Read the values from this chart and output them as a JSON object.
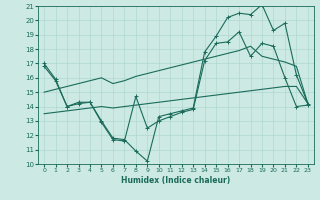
{
  "xlabel": "Humidex (Indice chaleur)",
  "background_color": "#cce9e4",
  "grid_color": "#b0d8d0",
  "line_color": "#1a6b5a",
  "xlim": [
    -0.5,
    23.5
  ],
  "ylim": [
    10,
    21
  ],
  "yticks": [
    10,
    11,
    12,
    13,
    14,
    15,
    16,
    17,
    18,
    19,
    20,
    21
  ],
  "xticks": [
    0,
    1,
    2,
    3,
    4,
    5,
    6,
    7,
    8,
    9,
    10,
    11,
    12,
    13,
    14,
    15,
    16,
    17,
    18,
    19,
    20,
    21,
    22,
    23
  ],
  "line1_x": [
    0,
    1,
    2,
    3,
    4,
    5,
    6,
    7,
    8,
    9,
    10,
    11,
    12,
    13,
    14,
    15,
    16,
    17,
    18,
    19,
    20,
    21,
    22,
    23
  ],
  "line1_y": [
    17.0,
    15.9,
    14.0,
    14.3,
    14.3,
    13.0,
    11.8,
    11.7,
    10.9,
    10.2,
    13.3,
    13.5,
    13.7,
    13.9,
    17.8,
    18.9,
    20.2,
    20.5,
    20.4,
    21.1,
    19.3,
    19.8,
    16.2,
    14.2
  ],
  "line2_x": [
    0,
    1,
    2,
    3,
    4,
    5,
    6,
    7,
    8,
    9,
    10,
    11,
    12,
    13,
    14,
    15,
    16,
    17,
    18,
    19,
    20,
    21,
    22,
    23
  ],
  "line2_y": [
    16.8,
    15.8,
    14.0,
    14.2,
    14.3,
    12.9,
    11.7,
    11.6,
    14.7,
    12.5,
    13.0,
    13.3,
    13.6,
    13.8,
    17.2,
    18.4,
    18.5,
    19.2,
    17.5,
    18.4,
    18.2,
    16.0,
    14.0,
    14.1
  ],
  "line3_x": [
    0,
    1,
    2,
    3,
    4,
    5,
    6,
    7,
    8,
    9,
    10,
    11,
    12,
    13,
    14,
    15,
    16,
    17,
    18,
    19,
    20,
    21,
    22,
    23
  ],
  "line3_y": [
    13.5,
    13.6,
    13.7,
    13.8,
    13.9,
    14.0,
    13.9,
    14.0,
    14.1,
    14.2,
    14.3,
    14.4,
    14.5,
    14.6,
    14.7,
    14.8,
    14.9,
    15.0,
    15.1,
    15.2,
    15.3,
    15.4,
    15.4,
    14.2
  ],
  "line4_x": [
    0,
    1,
    2,
    3,
    4,
    5,
    6,
    7,
    8,
    9,
    10,
    11,
    12,
    13,
    14,
    15,
    16,
    17,
    18,
    19,
    20,
    21,
    22,
    23
  ],
  "line4_y": [
    15.0,
    15.2,
    15.4,
    15.6,
    15.8,
    16.0,
    15.6,
    15.8,
    16.1,
    16.3,
    16.5,
    16.7,
    16.9,
    17.1,
    17.3,
    17.5,
    17.7,
    17.9,
    18.2,
    17.5,
    17.3,
    17.1,
    16.8,
    14.2
  ]
}
